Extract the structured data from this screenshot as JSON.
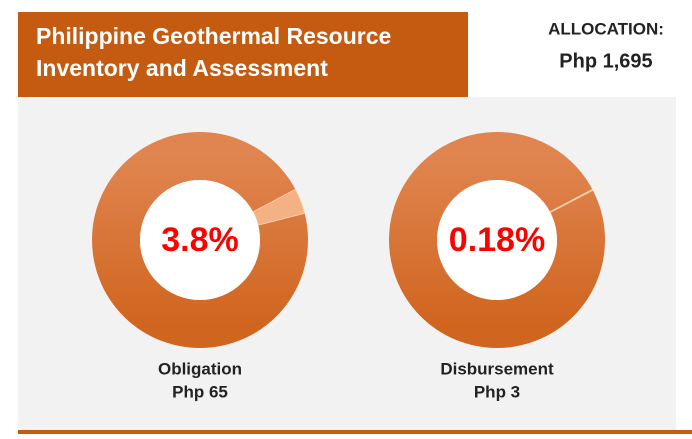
{
  "title": "Philippine Geothermal Resource Inventory and Assessment",
  "allocation": {
    "label": "ALLOCATION:",
    "amount": "Php 1,695"
  },
  "chart_data": [
    {
      "type": "donut",
      "categories": [
        "Obligation"
      ],
      "values": [
        3.8
      ],
      "value_labels": [
        "3.8%"
      ],
      "subtitle": "Php 65",
      "color": "#f4b183",
      "base_color": "#d9712d"
    },
    {
      "type": "donut",
      "categories": [
        "Disbursement"
      ],
      "values": [
        0.18
      ],
      "value_labels": [
        "0.18%"
      ],
      "subtitle": "Php 3",
      "color": "#f4b183",
      "base_color": "#d9712d"
    }
  ]
}
